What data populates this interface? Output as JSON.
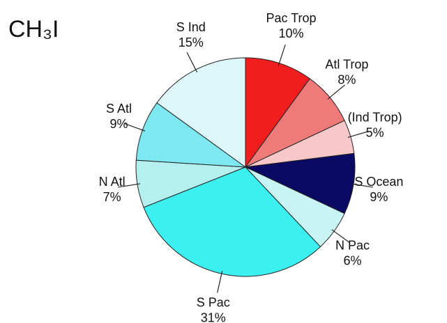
{
  "chart_data": {
    "type": "pie",
    "title": "CH₃I",
    "categories": [
      "Pac Trop",
      "Atl Trop",
      "(Ind Trop)",
      "S Ocean",
      "N Pac",
      "S Pac",
      "N Atl",
      "S Atl",
      "S Ind"
    ],
    "values": [
      10,
      8,
      5,
      9,
      6,
      31,
      7,
      9,
      15
    ],
    "value_labels": [
      "10%",
      "8%",
      "5%",
      "9%",
      "6%",
      "31%",
      "7%",
      "9%",
      "15%"
    ],
    "colors": [
      "#f01e1e",
      "#ee7a7a",
      "#f8c8c8",
      "#0a0a64",
      "#c8f4f4",
      "#3cf0f0",
      "#b4f0f0",
      "#7ee8f0",
      "#dcf6fa"
    ]
  }
}
